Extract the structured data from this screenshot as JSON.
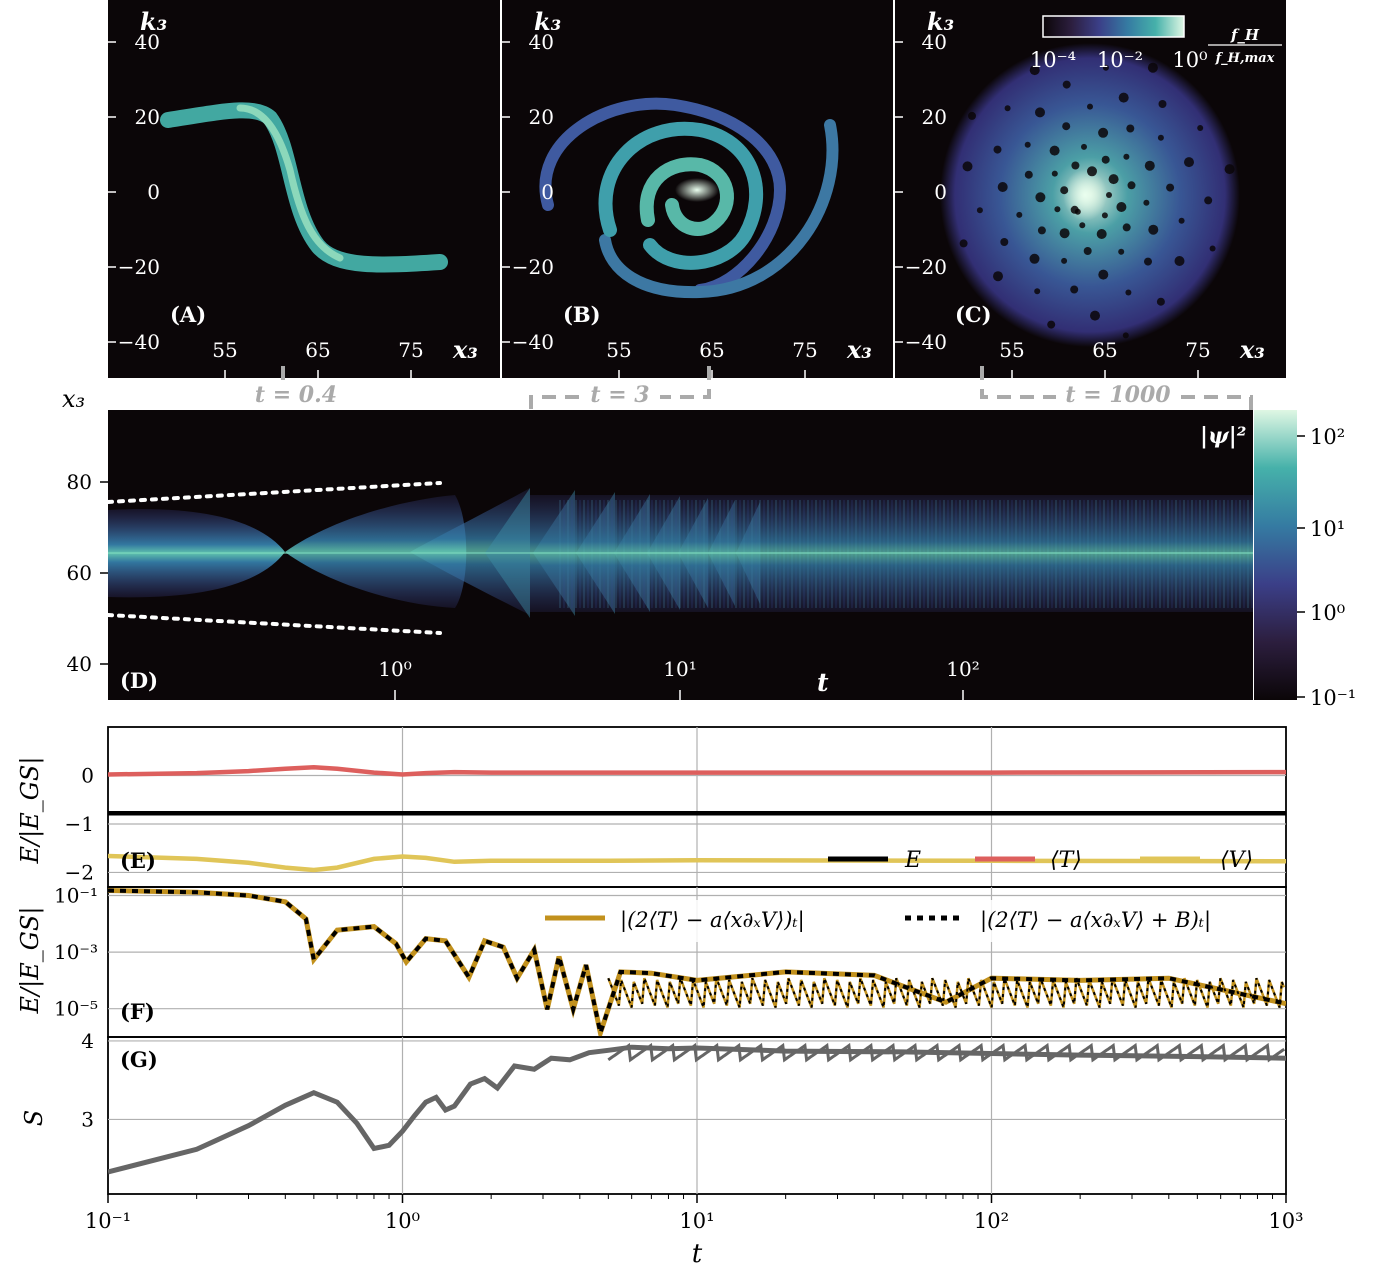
{
  "colors": {
    "dark_bg": "#0b0608",
    "mako_low": "#2c2f60",
    "mako_mid": "#3e8aa3",
    "mako_high": "#dff7e4",
    "T_color": "#dd5f5d",
    "V_color": "#e0c558",
    "F_color": "#c2911d",
    "E_color": "#000000",
    "S_color": "#666666",
    "marker_grey": "#aaaaaa"
  },
  "panels": {
    "A": {
      "label": "(A)",
      "time_tag": "t = 0.4"
    },
    "B": {
      "label": "(B)",
      "time_tag": "t = 3"
    },
    "C": {
      "label": "(C)",
      "time_tag": "t = 1000"
    },
    "D": {
      "label": "(D)"
    },
    "E": {
      "label": "(E)"
    },
    "F": {
      "label": "(F)"
    },
    "G": {
      "label": "(G)"
    }
  },
  "phase_space": {
    "xlabel": "x₃",
    "ylabel": "k₃",
    "x_ticks": [
      "55",
      "65",
      "75"
    ],
    "y_ticks": [
      "40",
      "20",
      "0",
      "−20",
      "−40"
    ],
    "colorbar": {
      "label_num": "f_H",
      "label_den": "f_H,max",
      "ticks": [
        "10⁻⁴",
        "10⁻²",
        "10⁰"
      ]
    }
  },
  "density_plot": {
    "ylabel": "x₃",
    "xlabel": "t",
    "y_ticks": [
      "80",
      "60",
      "40"
    ],
    "x_ticks": [
      "10⁰",
      "10¹",
      "10²"
    ],
    "colorbar": {
      "label": "|ψ|²",
      "ticks": [
        "10²",
        "10¹",
        "10⁰",
        "10⁻¹"
      ]
    }
  },
  "bottom_axis": {
    "xlabel": "t",
    "x_ticks": [
      "10⁻¹",
      "10⁰",
      "10¹",
      "10²",
      "10³"
    ],
    "xlim": [
      0.1,
      1000
    ],
    "scale": "log"
  },
  "chart_data": [
    {
      "type": "line",
      "panel": "E",
      "ylabel": "E/|E_GS|",
      "ylim": [
        -2.3,
        1.0
      ],
      "y_ticks": [
        "0",
        "−1",
        "−2"
      ],
      "legend_placement": "bottom-right",
      "series": [
        {
          "name": "E",
          "x": [
            0.1,
            1000
          ],
          "values": [
            -0.78,
            -0.78
          ]
        },
        {
          "name": "⟨T⟩",
          "x": [
            0.1,
            0.2,
            0.3,
            0.4,
            0.5,
            0.6,
            0.8,
            1.0,
            1.2,
            1.5,
            2,
            5,
            10,
            100,
            1000
          ],
          "values": [
            0.02,
            0.05,
            0.09,
            0.14,
            0.17,
            0.14,
            0.06,
            0.02,
            0.05,
            0.07,
            0.06,
            0.06,
            0.06,
            0.06,
            0.07
          ]
        },
        {
          "name": "⟨V⟩",
          "x": [
            0.1,
            0.2,
            0.3,
            0.4,
            0.5,
            0.6,
            0.8,
            1.0,
            1.2,
            1.5,
            2,
            5,
            10,
            100,
            1000
          ],
          "values": [
            -1.66,
            -1.72,
            -1.8,
            -1.9,
            -1.95,
            -1.9,
            -1.72,
            -1.67,
            -1.7,
            -1.78,
            -1.76,
            -1.76,
            -1.75,
            -1.76,
            -1.77
          ]
        }
      ]
    },
    {
      "type": "line",
      "panel": "F",
      "ylabel": "E/|E_GS|",
      "scale": "log",
      "ylim": [
        1e-06,
        0.2
      ],
      "y_ticks": [
        "10⁻¹",
        "10⁻³",
        "10⁻⁵"
      ],
      "legend_placement": "top-right",
      "series": [
        {
          "name": "|(2⟨T⟩ − a⟨x∂ₓV⟩)ₜ|",
          "x": [
            0.1,
            0.2,
            0.3,
            0.4,
            0.47,
            0.5,
            0.6,
            0.8,
            0.95,
            1.03,
            1.2,
            1.4,
            1.68,
            1.9,
            2.2,
            2.45,
            2.8,
            3.1,
            3.4,
            3.8,
            4.2,
            4.7,
            5.5,
            7,
            10,
            20,
            40,
            70,
            100,
            200,
            400,
            1000
          ],
          "values": [
            0.15,
            0.13,
            0.1,
            0.06,
            0.015,
            0.00055,
            0.006,
            0.008,
            0.002,
            0.00045,
            0.003,
            0.0025,
            0.00013,
            0.0025,
            0.0015,
            0.00012,
            0.0012,
            9.5e-06,
            0.0007,
            9.5e-06,
            0.00035,
            1.4e-06,
            0.0002,
            0.00018,
            0.0001,
            0.0002,
            0.00015,
            1.7e-05,
            0.00012,
            0.0001,
            0.00012,
            1.5e-05
          ]
        },
        {
          "name": "|(2⟨T⟩ − a⟨x∂ₓV⟩ + B)ₜ|",
          "x": [
            0.1,
            0.2,
            0.3,
            0.4,
            0.47,
            0.5,
            0.6,
            0.8,
            0.95,
            1.03,
            1.2,
            1.4,
            1.68,
            1.9,
            2.2,
            2.45,
            2.8,
            3.1,
            3.4,
            3.8,
            4.2,
            4.7,
            5.5,
            7,
            10,
            20,
            40,
            70,
            100,
            200,
            400,
            1000
          ],
          "values": [
            0.15,
            0.13,
            0.1,
            0.06,
            0.015,
            0.00055,
            0.006,
            0.008,
            0.002,
            0.00045,
            0.003,
            0.0025,
            0.00013,
            0.0025,
            0.0015,
            0.00012,
            0.0012,
            9.5e-06,
            0.0007,
            9.5e-06,
            0.00035,
            1.4e-06,
            0.0002,
            0.00018,
            0.0001,
            0.0002,
            0.00015,
            1.7e-05,
            0.00012,
            0.0001,
            0.00012,
            1.5e-05
          ]
        }
      ]
    },
    {
      "type": "line",
      "panel": "G",
      "ylabel": "S",
      "ylim": [
        2.05,
        4.05
      ],
      "y_ticks": [
        "4",
        "3"
      ],
      "series": [
        {
          "name": "",
          "x": [
            0.1,
            0.2,
            0.3,
            0.4,
            0.5,
            0.6,
            0.7,
            0.8,
            0.9,
            1.0,
            1.1,
            1.2,
            1.3,
            1.4,
            1.5,
            1.7,
            1.9,
            2.1,
            2.4,
            2.8,
            3.2,
            3.7,
            4.3,
            5,
            6,
            8,
            10,
            20,
            50,
            100,
            200,
            500,
            1000
          ],
          "values": [
            2.33,
            2.62,
            2.92,
            3.18,
            3.34,
            3.22,
            2.95,
            2.63,
            2.67,
            2.85,
            3.05,
            3.22,
            3.28,
            3.12,
            3.17,
            3.45,
            3.52,
            3.4,
            3.68,
            3.64,
            3.78,
            3.76,
            3.85,
            3.88,
            3.92,
            3.9,
            3.91,
            3.87,
            3.86,
            3.84,
            3.82,
            3.8,
            3.78
          ]
        }
      ]
    }
  ]
}
